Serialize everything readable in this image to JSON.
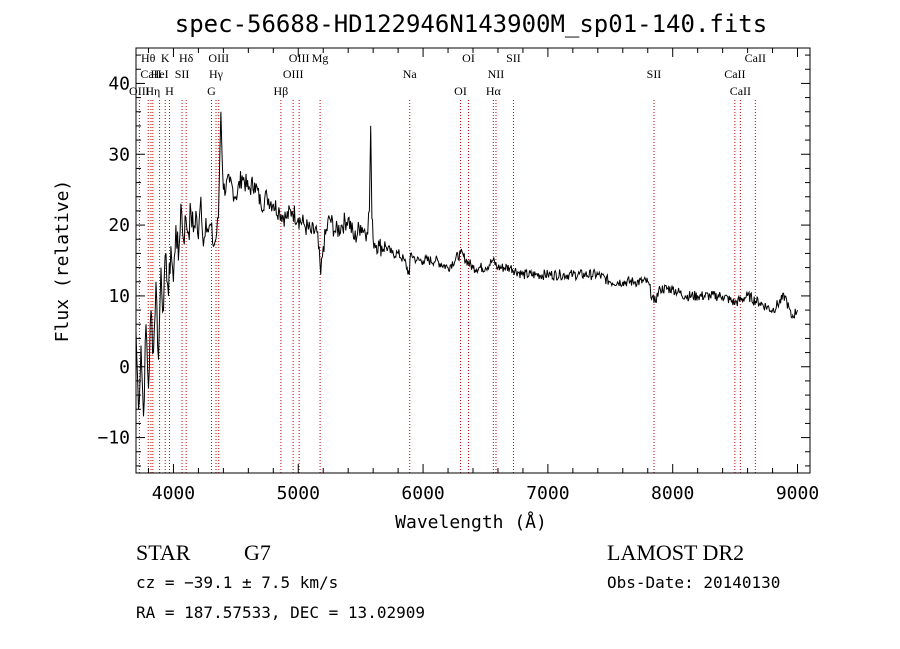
{
  "chart_data": {
    "type": "line",
    "title": "spec-56688-HD122946N143900M_sp01-140.fits",
    "xlabel": "Wavelength (Å)",
    "ylabel": "Flux (relative)",
    "xlim": [
      3700,
      9100
    ],
    "ylim": [
      -15,
      45
    ],
    "xticks": [
      4000,
      5000,
      6000,
      7000,
      8000,
      9000
    ],
    "yticks": [
      -10,
      0,
      10,
      20,
      30,
      40
    ],
    "xtick_labels": [
      "4000",
      "5000",
      "6000",
      "7000",
      "8000",
      "9000"
    ],
    "ytick_labels": [
      "−10",
      "0",
      "10",
      "20",
      "30",
      "40"
    ],
    "series": [
      {
        "name": "flux",
        "x": [
          3700,
          3720,
          3740,
          3760,
          3780,
          3800,
          3820,
          3840,
          3860,
          3880,
          3900,
          3920,
          3940,
          3960,
          3980,
          4000,
          4020,
          4040,
          4060,
          4080,
          4100,
          4120,
          4140,
          4160,
          4180,
          4200,
          4220,
          4240,
          4260,
          4280,
          4300,
          4320,
          4340,
          4360,
          4380,
          4400,
          4450,
          4500,
          4550,
          4600,
          4650,
          4700,
          4750,
          4800,
          4850,
          4900,
          4950,
          5000,
          5050,
          5100,
          5150,
          5180,
          5200,
          5250,
          5300,
          5350,
          5400,
          5450,
          5500,
          5550,
          5570,
          5580,
          5590,
          5600,
          5650,
          5700,
          5750,
          5800,
          5850,
          5890,
          5900,
          5950,
          6000,
          6100,
          6200,
          6300,
          6400,
          6500,
          6560,
          6600,
          6700,
          6800,
          6900,
          7000,
          7100,
          7200,
          7300,
          7400,
          7500,
          7600,
          7700,
          7800,
          7850,
          7900,
          8000,
          8100,
          8200,
          8300,
          8400,
          8500,
          8600,
          8700,
          8800,
          8900,
          8950,
          9000
        ],
        "values": [
          5,
          -6,
          3,
          -7,
          6,
          -3,
          8,
          2,
          12,
          1,
          14,
          8,
          16,
          10,
          17,
          12,
          20,
          15,
          23,
          18,
          21,
          19,
          22,
          19,
          22,
          18,
          24,
          17,
          21,
          19,
          20,
          17,
          18,
          21,
          36,
          25,
          26,
          24,
          27,
          25,
          26,
          23,
          24,
          23,
          22,
          21,
          22,
          21,
          20,
          19,
          19,
          13,
          17,
          21,
          19,
          20,
          21,
          18,
          20,
          19,
          22,
          34,
          21,
          18,
          17,
          17,
          16,
          16,
          15,
          13,
          16,
          15,
          15,
          15,
          14,
          16,
          14,
          14,
          15,
          14,
          14,
          13,
          13,
          13,
          13,
          13,
          13,
          13,
          12,
          12,
          12,
          12,
          9,
          11,
          11,
          10,
          10,
          10,
          10,
          9,
          10,
          9,
          8,
          10,
          7,
          8
        ]
      }
    ],
    "line_markers": [
      {
        "label": "Hθ",
        "x": 3798
      },
      {
        "label": "CaII",
        "x": 3820
      },
      {
        "label": "OIII",
        "x": 3727
      },
      {
        "label": "K",
        "x": 3934
      },
      {
        "label": "HeI",
        "x": 3889
      },
      {
        "label": "Hη",
        "x": 3835
      },
      {
        "label": "Hδ",
        "x": 4102
      },
      {
        "label": "SII",
        "x": 4069
      },
      {
        "label": "H",
        "x": 3968
      },
      {
        "label": "OIII",
        "x": 4363
      },
      {
        "label": "Hγ",
        "x": 4341
      },
      {
        "label": "G",
        "x": 4305
      },
      {
        "label": "OIII",
        "x": 5007
      },
      {
        "label": "OIII",
        "x": 4959
      },
      {
        "label": "Hβ",
        "x": 4861
      },
      {
        "label": "Mg",
        "x": 5175
      },
      {
        "label": "Na",
        "x": 5893
      },
      {
        "label": "OI",
        "x": 6300
      },
      {
        "label": "OI",
        "x": 6364
      },
      {
        "label": "NII",
        "x": 6584
      },
      {
        "label": "Hα",
        "x": 6563
      },
      {
        "label": "SII",
        "x": 6724
      },
      {
        "label": "SII",
        "x": 7850
      },
      {
        "label": "CaII",
        "x": 8542
      },
      {
        "label": "CaII",
        "x": 8662
      },
      {
        "label": "CaII",
        "x": 8498
      }
    ]
  },
  "footer": {
    "object_class": "STAR",
    "subclass": "G7",
    "cz_line": "cz = −39.1 ± 7.5 km/s",
    "coords_line": "RA = 187.57533, DEC =  13.02909",
    "survey": "LAMOST DR2",
    "obs_date": "Obs-Date: 20140130"
  },
  "colors": {
    "spectrum": "#000000",
    "marker_line": "#cc0000",
    "axis": "#000000"
  }
}
